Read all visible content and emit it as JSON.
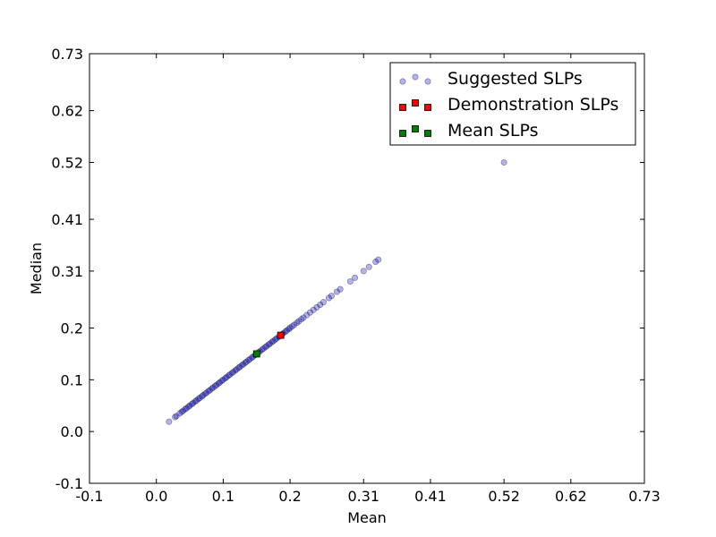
{
  "chart_data": {
    "type": "scatter",
    "xlabel": "Mean",
    "ylabel": "Median",
    "xlim": [
      -0.1,
      0.73
    ],
    "ylim": [
      -0.1,
      0.73
    ],
    "x_ticks": [
      -0.1,
      0.0,
      0.1,
      0.2,
      0.31,
      0.41,
      0.52,
      0.62,
      0.73
    ],
    "x_tick_labels": [
      "-0.1",
      "0.0",
      "0.1",
      "0.2",
      "0.31",
      "0.41",
      "0.52",
      "0.62",
      "0.73"
    ],
    "y_ticks": [
      -0.1,
      0.0,
      0.1,
      0.2,
      0.31,
      0.41,
      0.52,
      0.62,
      0.73
    ],
    "y_tick_labels": [
      "-0.1",
      "0.0",
      "0.1",
      "0.2",
      "0.31",
      "0.41",
      "0.52",
      "0.62",
      "0.73"
    ],
    "grid": false,
    "legend_position": "top-right",
    "series": [
      {
        "name": "Suggested SLPs",
        "marker": "circle",
        "color": "#0000cc",
        "opacity": 0.3,
        "points": [
          [
            0.019,
            0.019
          ],
          [
            0.028,
            0.028
          ],
          [
            0.03,
            0.03
          ],
          [
            0.035,
            0.035
          ],
          [
            0.038,
            0.038
          ],
          [
            0.04,
            0.04
          ],
          [
            0.043,
            0.043
          ],
          [
            0.045,
            0.045
          ],
          [
            0.048,
            0.048
          ],
          [
            0.05,
            0.05
          ],
          [
            0.053,
            0.053
          ],
          [
            0.055,
            0.055
          ],
          [
            0.058,
            0.058
          ],
          [
            0.06,
            0.06
          ],
          [
            0.063,
            0.063
          ],
          [
            0.065,
            0.065
          ],
          [
            0.068,
            0.068
          ],
          [
            0.07,
            0.07
          ],
          [
            0.073,
            0.073
          ],
          [
            0.075,
            0.075
          ],
          [
            0.078,
            0.078
          ],
          [
            0.08,
            0.08
          ],
          [
            0.083,
            0.083
          ],
          [
            0.085,
            0.085
          ],
          [
            0.088,
            0.088
          ],
          [
            0.09,
            0.09
          ],
          [
            0.093,
            0.093
          ],
          [
            0.095,
            0.095
          ],
          [
            0.098,
            0.098
          ],
          [
            0.1,
            0.1
          ],
          [
            0.103,
            0.103
          ],
          [
            0.105,
            0.105
          ],
          [
            0.108,
            0.108
          ],
          [
            0.11,
            0.11
          ],
          [
            0.113,
            0.113
          ],
          [
            0.115,
            0.115
          ],
          [
            0.118,
            0.118
          ],
          [
            0.12,
            0.12
          ],
          [
            0.123,
            0.123
          ],
          [
            0.125,
            0.125
          ],
          [
            0.128,
            0.128
          ],
          [
            0.13,
            0.13
          ],
          [
            0.133,
            0.133
          ],
          [
            0.135,
            0.135
          ],
          [
            0.138,
            0.138
          ],
          [
            0.14,
            0.14
          ],
          [
            0.143,
            0.143
          ],
          [
            0.145,
            0.145
          ],
          [
            0.148,
            0.148
          ],
          [
            0.15,
            0.15
          ],
          [
            0.153,
            0.153
          ],
          [
            0.155,
            0.155
          ],
          [
            0.158,
            0.158
          ],
          [
            0.16,
            0.16
          ],
          [
            0.163,
            0.163
          ],
          [
            0.165,
            0.165
          ],
          [
            0.168,
            0.168
          ],
          [
            0.17,
            0.17
          ],
          [
            0.173,
            0.173
          ],
          [
            0.175,
            0.175
          ],
          [
            0.178,
            0.178
          ],
          [
            0.18,
            0.18
          ],
          [
            0.183,
            0.183
          ],
          [
            0.185,
            0.185
          ],
          [
            0.188,
            0.188
          ],
          [
            0.19,
            0.19
          ],
          [
            0.193,
            0.193
          ],
          [
            0.195,
            0.195
          ],
          [
            0.198,
            0.198
          ],
          [
            0.2,
            0.2
          ],
          [
            0.203,
            0.203
          ],
          [
            0.206,
            0.206
          ],
          [
            0.21,
            0.21
          ],
          [
            0.213,
            0.213
          ],
          [
            0.217,
            0.217
          ],
          [
            0.22,
            0.22
          ],
          [
            0.225,
            0.225
          ],
          [
            0.23,
            0.23
          ],
          [
            0.235,
            0.235
          ],
          [
            0.24,
            0.24
          ],
          [
            0.245,
            0.245
          ],
          [
            0.25,
            0.25
          ],
          [
            0.258,
            0.258
          ],
          [
            0.262,
            0.262
          ],
          [
            0.27,
            0.27
          ],
          [
            0.275,
            0.275
          ],
          [
            0.29,
            0.29
          ],
          [
            0.297,
            0.297
          ],
          [
            0.31,
            0.31
          ],
          [
            0.318,
            0.318
          ],
          [
            0.328,
            0.328
          ],
          [
            0.332,
            0.332
          ],
          [
            0.52,
            0.52
          ]
        ]
      },
      {
        "name": "Demonstration SLPs",
        "marker": "square",
        "color": "#ff0000",
        "opacity": 1,
        "points": [
          [
            0.186,
            0.186
          ]
        ]
      },
      {
        "name": "Mean SLPs",
        "marker": "square",
        "color": "#008000",
        "opacity": 1,
        "points": [
          [
            0.15,
            0.15
          ]
        ]
      }
    ]
  }
}
